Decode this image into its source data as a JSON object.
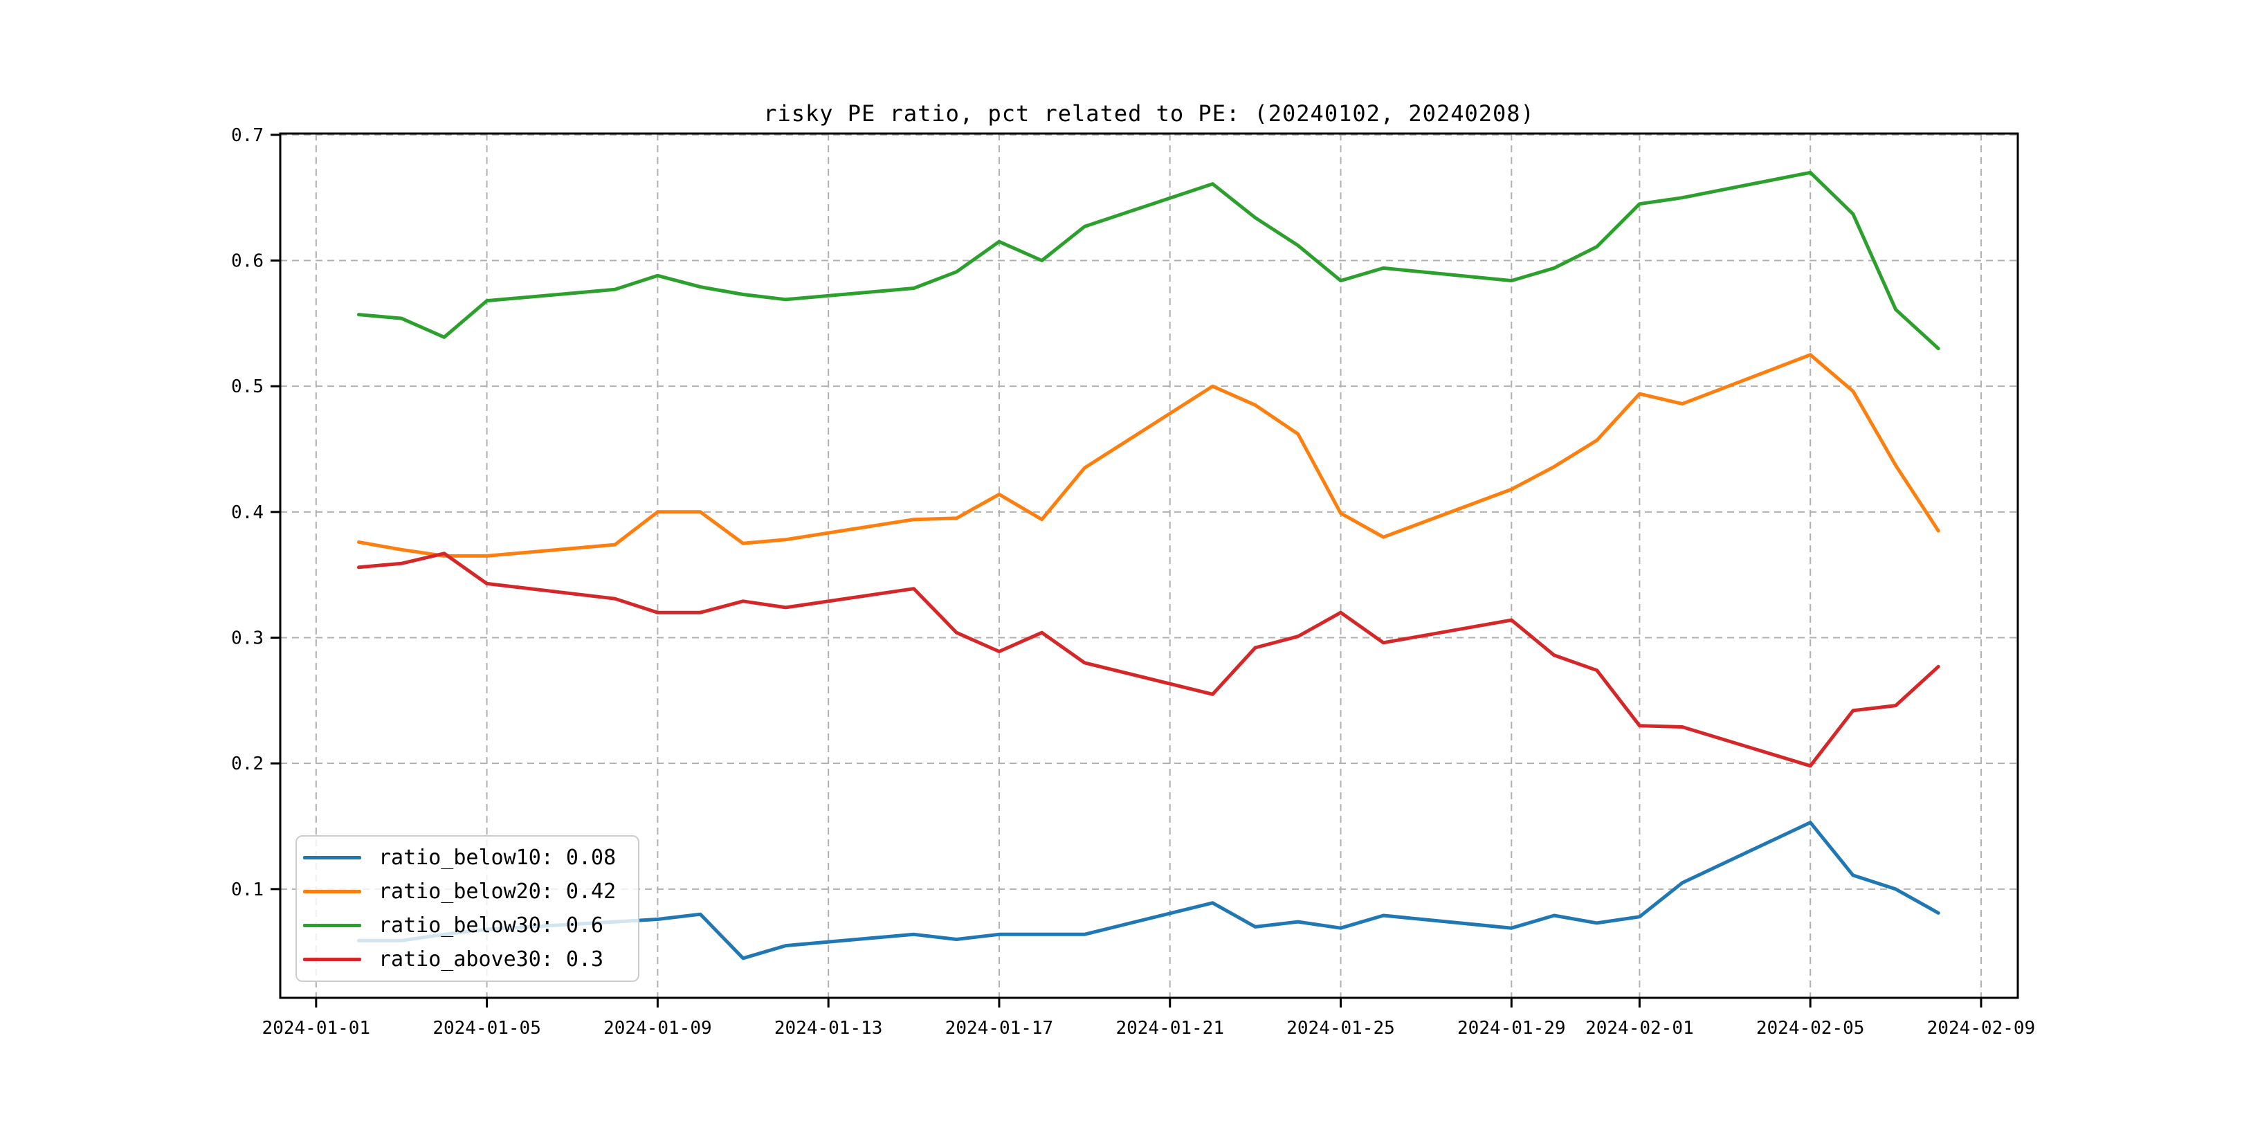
{
  "chart_data": {
    "type": "line",
    "title": "risky PE ratio, pct related to PE: (20240102, 20240208)",
    "grid": true,
    "grid_style": "dashed",
    "grid_color": "#b0b0b0",
    "spine_color": "#000000",
    "background_color": "#ffffff",
    "legend_position": "lower left",
    "x": [
      "2024-01-02",
      "2024-01-03",
      "2024-01-04",
      "2024-01-05",
      "2024-01-08",
      "2024-01-09",
      "2024-01-10",
      "2024-01-11",
      "2024-01-12",
      "2024-01-15",
      "2024-01-16",
      "2024-01-17",
      "2024-01-18",
      "2024-01-19",
      "2024-01-22",
      "2024-01-23",
      "2024-01-24",
      "2024-01-25",
      "2024-01-26",
      "2024-01-29",
      "2024-01-30",
      "2024-01-31",
      "2024-02-01",
      "2024-02-02",
      "2024-02-05",
      "2024-02-06",
      "2024-02-07",
      "2024-02-08"
    ],
    "x_tick_labels": [
      "2024-01-01",
      "2024-01-05",
      "2024-01-09",
      "2024-01-13",
      "2024-01-17",
      "2024-01-21",
      "2024-01-25",
      "2024-01-29",
      "2024-02-01",
      "2024-02-05",
      "2024-02-09"
    ],
    "y_tick_labels": [
      "0.1",
      "0.2",
      "0.3",
      "0.4",
      "0.5",
      "0.6",
      "0.7"
    ],
    "xlabel": "",
    "ylabel": "",
    "xlim_days_from_2024_01_01": [
      -0.84,
      39.86
    ],
    "ylim": [
      0.0135,
      0.701
    ],
    "series": [
      {
        "name": "ratio_below10",
        "legend_label": "ratio_below10: 0.08",
        "color": "#1f77b4",
        "values": [
          0.059,
          0.059,
          0.064,
          0.068,
          0.074,
          0.076,
          0.08,
          0.045,
          0.055,
          0.064,
          0.06,
          0.064,
          0.064,
          0.064,
          0.089,
          0.07,
          0.074,
          0.069,
          0.079,
          0.069,
          0.079,
          0.073,
          0.078,
          0.105,
          0.153,
          0.111,
          0.1,
          0.081
        ]
      },
      {
        "name": "ratio_below20",
        "legend_label": "ratio_below20: 0.42",
        "color": "#ff7f0e",
        "values": [
          0.376,
          0.37,
          0.365,
          0.365,
          0.374,
          0.4,
          0.4,
          0.375,
          0.378,
          0.394,
          0.395,
          0.414,
          0.394,
          0.435,
          0.5,
          0.485,
          0.462,
          0.399,
          0.38,
          0.418,
          0.436,
          0.457,
          0.494,
          0.486,
          0.525,
          0.496,
          0.437,
          0.385
        ]
      },
      {
        "name": "ratio_below30",
        "legend_label": "ratio_below30: 0.6",
        "color": "#2ca02c",
        "values": [
          0.557,
          0.554,
          0.539,
          0.568,
          0.577,
          0.588,
          0.579,
          0.573,
          0.569,
          0.578,
          0.591,
          0.615,
          0.6,
          0.627,
          0.661,
          0.634,
          0.612,
          0.584,
          0.594,
          0.584,
          0.594,
          0.611,
          0.645,
          0.65,
          0.67,
          0.637,
          0.561,
          0.53
        ]
      },
      {
        "name": "ratio_above30",
        "legend_label": "ratio_above30: 0.3",
        "color": "#d62728",
        "values": [
          0.356,
          0.359,
          0.367,
          0.343,
          0.331,
          0.32,
          0.32,
          0.329,
          0.324,
          0.339,
          0.304,
          0.289,
          0.304,
          0.28,
          0.255,
          0.292,
          0.301,
          0.32,
          0.296,
          0.314,
          0.286,
          0.274,
          0.23,
          0.229,
          0.198,
          0.242,
          0.246,
          0.277
        ]
      }
    ]
  }
}
